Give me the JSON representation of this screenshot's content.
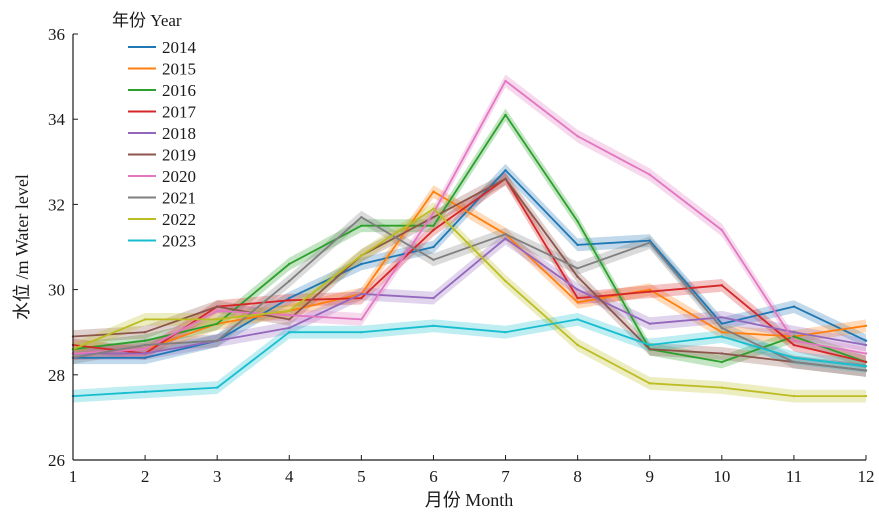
{
  "chart_data": {
    "type": "line",
    "xlabel": "月份 Month",
    "ylabel": "水位 /m Water level",
    "legend_title": "年份 Year",
    "legend_position": "top-left",
    "grid": false,
    "xlim": [
      1,
      12
    ],
    "ylim": [
      26,
      36
    ],
    "x_ticks": [
      "1",
      "2",
      "3",
      "4",
      "5",
      "6",
      "7",
      "8",
      "9",
      "10",
      "11",
      "12"
    ],
    "y_ticks": [
      "26",
      "28",
      "30",
      "32",
      "34",
      "36"
    ],
    "x": [
      1,
      2,
      3,
      4,
      5,
      6,
      7,
      8,
      9,
      10,
      11,
      12
    ],
    "series": [
      {
        "name": "2014",
        "color": "#1f77b4",
        "values": [
          28.4,
          28.4,
          28.8,
          29.8,
          30.6,
          31.0,
          32.8,
          31.05,
          31.15,
          29.2,
          29.6,
          28.8
        ]
      },
      {
        "name": "2015",
        "color": "#ff7f0e",
        "values": [
          28.5,
          28.6,
          29.2,
          29.5,
          29.9,
          32.3,
          31.3,
          29.7,
          30.0,
          29.0,
          28.9,
          29.15
        ]
      },
      {
        "name": "2016",
        "color": "#2ca02c",
        "values": [
          28.6,
          28.8,
          29.2,
          30.6,
          31.5,
          31.5,
          34.1,
          31.6,
          28.6,
          28.3,
          28.9,
          28.3
        ]
      },
      {
        "name": "2017",
        "color": "#d62728",
        "values": [
          28.7,
          28.5,
          29.6,
          29.75,
          29.8,
          31.4,
          32.6,
          29.8,
          29.95,
          30.1,
          28.7,
          28.3
        ]
      },
      {
        "name": "2018",
        "color": "#9467bd",
        "values": [
          28.5,
          28.5,
          28.8,
          29.1,
          29.9,
          29.8,
          31.2,
          30.0,
          29.2,
          29.35,
          29.0,
          28.7
        ]
      },
      {
        "name": "2019",
        "color": "#8c564b",
        "values": [
          28.9,
          29.0,
          29.6,
          29.3,
          30.8,
          31.7,
          32.6,
          30.3,
          28.6,
          28.5,
          28.3,
          28.1
        ]
      },
      {
        "name": "2020",
        "color": "#e377c2",
        "values": [
          28.5,
          28.6,
          29.5,
          29.4,
          29.3,
          31.8,
          34.9,
          33.6,
          32.7,
          31.4,
          28.8,
          28.5
        ]
      },
      {
        "name": "2021",
        "color": "#7f7f7f",
        "values": [
          28.4,
          28.7,
          28.8,
          30.2,
          31.7,
          30.7,
          31.3,
          30.5,
          31.1,
          29.1,
          28.3,
          28.1
        ]
      },
      {
        "name": "2022",
        "color": "#bcbd22",
        "values": [
          28.6,
          29.3,
          29.3,
          29.5,
          30.8,
          31.9,
          30.2,
          28.7,
          27.8,
          27.7,
          27.5,
          27.5
        ]
      },
      {
        "name": "2023",
        "color": "#17becf",
        "values": [
          27.5,
          27.6,
          27.7,
          29.0,
          29.0,
          29.15,
          29.0,
          29.3,
          28.7,
          28.9,
          28.4,
          28.2
        ]
      }
    ]
  }
}
